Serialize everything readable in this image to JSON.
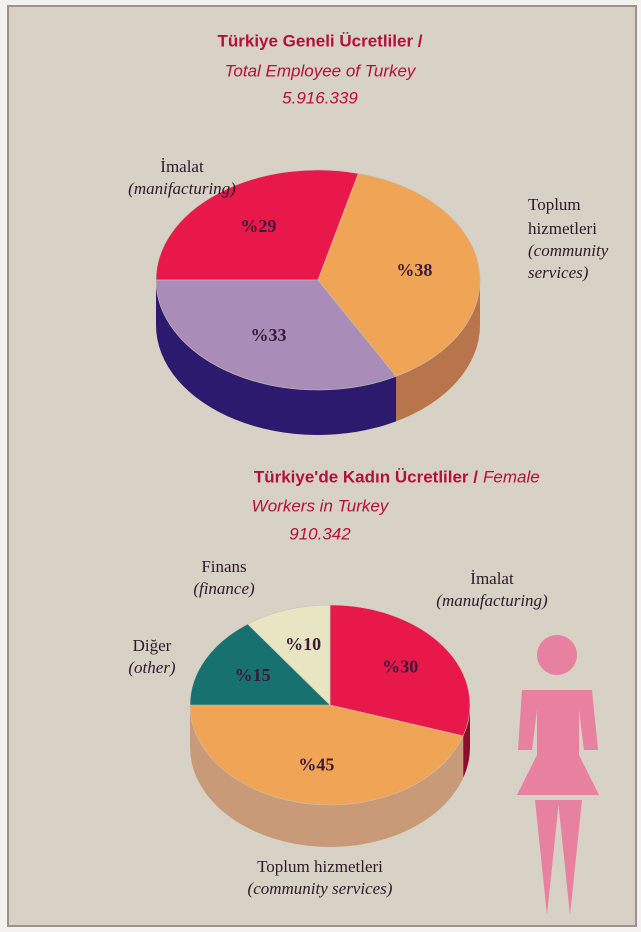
{
  "chart_data": [
    {
      "type": "pie3d",
      "title": "Türkiye Geneli Ücretliler /",
      "subtitle": [
        "Total Employee of Turkey"
      ],
      "total_label": "5.916.339",
      "categories": [
        "İmalat",
        "Toplum hizmetleri",
        null
      ],
      "category_translations": [
        "(manifacturing)",
        "(community services)",
        null
      ],
      "values": [
        29,
        38,
        33
      ],
      "value_labels": [
        "%29",
        "%38",
        "%33"
      ],
      "colors": [
        "#e8194a",
        "#f0a455",
        "#a98db8"
      ],
      "side_colors": [
        "#9a0f30",
        "#b8744a",
        "#2b1a6e"
      ],
      "start_angle": 180
    },
    {
      "type": "pie3d",
      "title": "Türkiye'de Kadın Ücretliler /",
      "subtitle": [
        "Female",
        "Workers in Turkey"
      ],
      "total_label": "910.342",
      "categories": [
        "İmalat",
        "Toplum hizmetleri",
        "Diğer",
        "Finans"
      ],
      "category_translations": [
        "(manufacturing)",
        "(community services)",
        "(other)",
        "(finance)"
      ],
      "values": [
        30,
        45,
        15,
        10
      ],
      "value_labels": [
        "%30",
        "%45",
        "%15",
        "%10"
      ],
      "colors": [
        "#e8194a",
        "#f0a455",
        "#17716f",
        "#e8e5c2"
      ],
      "side_colors": [
        "#8e0d2c",
        "#c99a78",
        "#0c4544",
        "#b5b295"
      ],
      "start_angle": 270
    }
  ]
}
